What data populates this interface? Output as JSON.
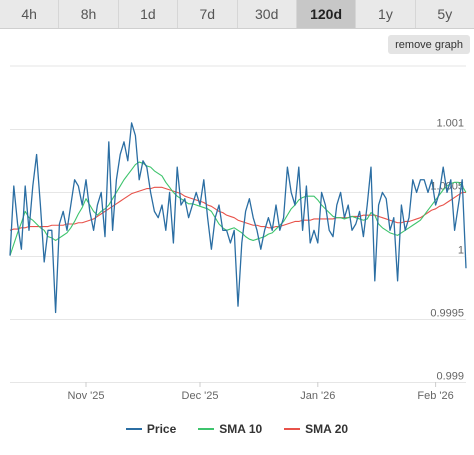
{
  "range_bar": {
    "buttons": [
      "4h",
      "8h",
      "1d",
      "7d",
      "30d",
      "120d",
      "1y",
      "5y"
    ],
    "active": "120d"
  },
  "remove_graph_label": "remove graph",
  "colors": {
    "price": "#2b6ea3",
    "sma10": "#3ec46d",
    "sma20": "#e8524a",
    "grid": "#e6e6e6",
    "axis_text": "#666666"
  },
  "chart_data": {
    "type": "line",
    "title": "",
    "xlabel": "",
    "ylabel": "",
    "ylim": [
      0.999,
      1.0015
    ],
    "yticks": [
      {
        "value": 1.001,
        "label": "1.001"
      },
      {
        "value": 1.0005,
        "label": "1.0005"
      },
      {
        "value": 1.0,
        "label": "1"
      },
      {
        "value": 0.9995,
        "label": "0.9995"
      },
      {
        "value": 0.999,
        "label": "0.999"
      }
    ],
    "xrange": [
      "2025-10-12",
      "2026-02-09"
    ],
    "xticks": [
      {
        "date": "2025-11-01",
        "label": "Nov '25"
      },
      {
        "date": "2025-12-01",
        "label": "Dec '25"
      },
      {
        "date": "2026-01-01",
        "label": "Jan '26"
      },
      {
        "date": "2026-02-01",
        "label": "Feb '26"
      }
    ],
    "x": [
      "2025-10-12",
      "2025-10-13",
      "2025-10-14",
      "2025-10-15",
      "2025-10-16",
      "2025-10-17",
      "2025-10-18",
      "2025-10-19",
      "2025-10-20",
      "2025-10-21",
      "2025-10-22",
      "2025-10-23",
      "2025-10-24",
      "2025-10-25",
      "2025-10-26",
      "2025-10-27",
      "2025-10-28",
      "2025-10-29",
      "2025-10-30",
      "2025-10-31",
      "2025-11-01",
      "2025-11-02",
      "2025-11-03",
      "2025-11-04",
      "2025-11-05",
      "2025-11-06",
      "2025-11-07",
      "2025-11-08",
      "2025-11-09",
      "2025-11-10",
      "2025-11-11",
      "2025-11-12",
      "2025-11-13",
      "2025-11-14",
      "2025-11-15",
      "2025-11-16",
      "2025-11-17",
      "2025-11-18",
      "2025-11-19",
      "2025-11-20",
      "2025-11-21",
      "2025-11-22",
      "2025-11-23",
      "2025-11-24",
      "2025-11-25",
      "2025-11-26",
      "2025-11-27",
      "2025-11-28",
      "2025-11-29",
      "2025-11-30",
      "2025-12-01",
      "2025-12-02",
      "2025-12-03",
      "2025-12-04",
      "2025-12-05",
      "2025-12-06",
      "2025-12-07",
      "2025-12-08",
      "2025-12-09",
      "2025-12-10",
      "2025-12-11",
      "2025-12-12",
      "2025-12-13",
      "2025-12-14",
      "2025-12-15",
      "2025-12-16",
      "2025-12-17",
      "2025-12-18",
      "2025-12-19",
      "2025-12-20",
      "2025-12-21",
      "2025-12-22",
      "2025-12-23",
      "2025-12-24",
      "2025-12-25",
      "2025-12-26",
      "2025-12-27",
      "2025-12-28",
      "2025-12-29",
      "2025-12-30",
      "2025-12-31",
      "2026-01-01",
      "2026-01-02",
      "2026-01-03",
      "2026-01-04",
      "2026-01-05",
      "2026-01-06",
      "2026-01-07",
      "2026-01-08",
      "2026-01-09",
      "2026-01-10",
      "2026-01-11",
      "2026-01-12",
      "2026-01-13",
      "2026-01-14",
      "2026-01-15",
      "2026-01-16",
      "2026-01-17",
      "2026-01-18",
      "2026-01-19",
      "2026-01-20",
      "2026-01-21",
      "2026-01-22",
      "2026-01-23",
      "2026-01-24",
      "2026-01-25",
      "2026-01-26",
      "2026-01-27",
      "2026-01-28",
      "2026-01-29",
      "2026-01-30",
      "2026-01-31",
      "2026-02-01",
      "2026-02-02",
      "2026-02-03",
      "2026-02-04",
      "2026-02-05",
      "2026-02-06",
      "2026-02-07",
      "2026-02-08",
      "2026-02-09"
    ],
    "series": [
      {
        "name": "Price",
        "values": [
          1.0,
          1.00055,
          1.00025,
          1.00005,
          1.00055,
          1.0002,
          1.00055,
          1.0008,
          1.0004,
          0.99995,
          1.0002,
          1.0002,
          0.99955,
          1.00025,
          1.00035,
          1.0002,
          1.0004,
          1.0006,
          1.00055,
          1.0004,
          1.0006,
          1.00035,
          1.0002,
          1.0004,
          1.0005,
          1.00015,
          1.0009,
          1.0002,
          1.0006,
          1.0008,
          1.0009,
          1.00075,
          1.00105,
          1.00095,
          1.0006,
          1.00075,
          1.0007,
          1.0005,
          1.00035,
          1.0003,
          1.0004,
          1.0002,
          1.0005,
          1.0001,
          1.0007,
          1.0004,
          1.00045,
          1.0003,
          1.0004,
          1.0005,
          1.0004,
          1.0006,
          1.0003,
          1.00005,
          1.0003,
          1.0004,
          1.0002,
          1.0002,
          1.0001,
          1.0002,
          0.9996,
          1.0001,
          1.00035,
          1.00045,
          1.0003,
          1.0002,
          1.00005,
          1.0002,
          1.0003,
          1.0002,
          1.0004,
          1.0002,
          1.0003,
          1.0007,
          1.0005,
          1.0004,
          1.0007,
          1.0002,
          1.00055,
          1.0001,
          1.0002,
          1.0001,
          1.0005,
          1.0004,
          1.0002,
          1.00015,
          1.0004,
          1.0005,
          1.0003,
          1.0004,
          1.0002,
          1.00025,
          1.00035,
          1.00015,
          1.0004,
          1.0007,
          0.9998,
          1.0004,
          1.0005,
          1.00045,
          1.0002,
          1.0003,
          0.9998,
          1.0004,
          1.0002,
          1.0003,
          1.0006,
          1.0005,
          1.0006,
          1.0006,
          1.0005,
          1.0006,
          1.0004,
          1.0005,
          1.0007,
          1.0005,
          1.0006,
          1.0002,
          1.0004,
          1.0006,
          0.9999
        ]
      },
      {
        "name": "SMA 10",
        "values": [
          1.0,
          1.00009,
          1.00018,
          1.00026,
          1.00035,
          1.0003,
          1.00028,
          1.00025,
          1.00022,
          1.0002,
          1.00015,
          1.00014,
          1.00012,
          1.00014,
          1.00016,
          1.00018,
          1.00022,
          1.00027,
          1.00033,
          1.00038,
          1.00045,
          1.0004,
          1.00035,
          1.00032,
          1.00035,
          1.00037,
          1.0004,
          1.00045,
          1.0005,
          1.00055,
          1.0006,
          1.00064,
          1.00068,
          1.00072,
          1.00074,
          1.00073,
          1.00071,
          1.0007,
          1.00067,
          1.00065,
          1.00063,
          1.00058,
          1.00054,
          1.0005,
          1.00047,
          1.00045,
          1.00043,
          1.00041,
          1.00041,
          1.0004,
          1.00039,
          1.00038,
          1.00037,
          1.00035,
          1.0003,
          1.00025,
          1.00022,
          1.0002,
          1.00021,
          1.00022,
          1.0002,
          1.00018,
          1.00015,
          1.00013,
          1.00012,
          1.00013,
          1.00014,
          1.00015,
          1.00017,
          1.00018,
          1.00021,
          1.00024,
          1.00027,
          1.00032,
          1.00037,
          1.0004,
          1.00044,
          1.00046,
          1.00047,
          1.00047,
          1.00047,
          1.00044,
          1.0004,
          1.00037,
          1.00034,
          1.00031,
          1.0003,
          1.0003,
          1.00029,
          1.0003,
          1.00031,
          1.0003,
          1.00029,
          1.00028,
          1.00029,
          1.00034,
          1.00032,
          1.00025,
          1.00022,
          1.0002,
          1.00018,
          1.00017,
          1.00016,
          1.00018,
          1.0002,
          1.00022,
          1.00024,
          1.00026,
          1.00028,
          1.00032,
          1.00036,
          1.0004,
          1.00044,
          1.00048,
          1.00052,
          1.00055,
          1.00057,
          1.00058,
          1.00058,
          1.00055,
          1.0005
        ]
      },
      {
        "name": "SMA 20",
        "values": [
          1.0002,
          1.00021,
          1.00021,
          1.00022,
          1.00022,
          1.00023,
          1.00023,
          1.00023,
          1.00023,
          1.00023,
          1.00023,
          1.00024,
          1.00024,
          1.00024,
          1.00024,
          1.00025,
          1.00025,
          1.00025,
          1.00026,
          1.00026,
          1.00027,
          1.00028,
          1.00029,
          1.00031,
          1.00033,
          1.00035,
          1.00037,
          1.00039,
          1.00041,
          1.00043,
          1.00045,
          1.00047,
          1.00049,
          1.0005,
          1.00051,
          1.00052,
          1.00053,
          1.00053,
          1.00054,
          1.00054,
          1.00054,
          1.00053,
          1.00052,
          1.00051,
          1.0005,
          1.00049,
          1.00047,
          1.00046,
          1.00045,
          1.00044,
          1.00043,
          1.00042,
          1.0004,
          1.00039,
          1.00037,
          1.00035,
          1.00034,
          1.00032,
          1.00031,
          1.0003,
          1.00028,
          1.00027,
          1.00026,
          1.00025,
          1.00024,
          1.00024,
          1.00023,
          1.00023,
          1.00022,
          1.00022,
          1.00023,
          1.00023,
          1.00024,
          1.00025,
          1.00026,
          1.00027,
          1.00027,
          1.00028,
          1.00028,
          1.00028,
          1.00029,
          1.00029,
          1.00029,
          1.00029,
          1.00029,
          1.00029,
          1.0003,
          1.0003,
          1.0003,
          1.0003,
          1.00031,
          1.00031,
          1.00031,
          1.00032,
          1.00032,
          1.00032,
          1.00032,
          1.00031,
          1.0003,
          1.00029,
          1.00028,
          1.00027,
          1.00026,
          1.00026,
          1.00027,
          1.00027,
          1.00028,
          1.00029,
          1.0003,
          1.00032,
          1.00034,
          1.00036,
          1.00037,
          1.00039,
          1.0004,
          1.00042,
          1.00044,
          1.00046,
          1.00048,
          1.0005,
          1.0005
        ]
      }
    ],
    "legend": [
      "Price",
      "SMA 10",
      "SMA 20"
    ],
    "legend_position": "bottom",
    "grid": true
  }
}
